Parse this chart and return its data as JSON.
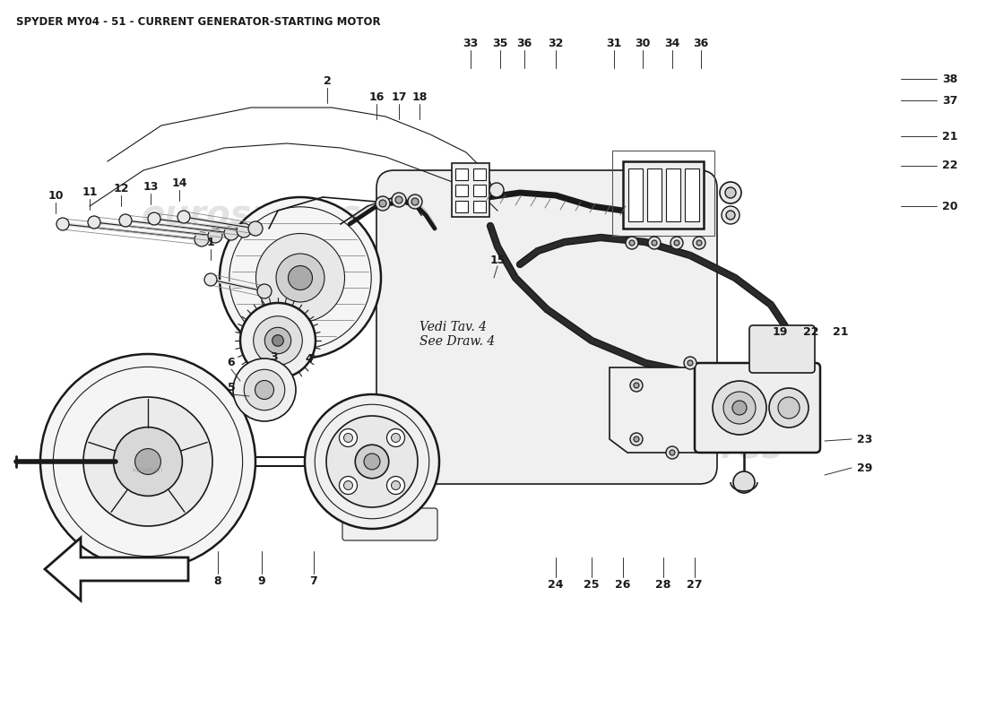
{
  "title": "SPYDER MY04 - 51 - CURRENT GENERATOR-STARTING MOTOR",
  "title_fontsize": 8.5,
  "title_color": "#1a1a1a",
  "background_color": "#ffffff",
  "watermark_text": "eurospares",
  "watermark_color": "#cccccc",
  "annotation_text": "Vedi Tav. 4\nSee Draw. 4",
  "fig_w": 11.0,
  "fig_h": 8.0,
  "dpi": 100
}
